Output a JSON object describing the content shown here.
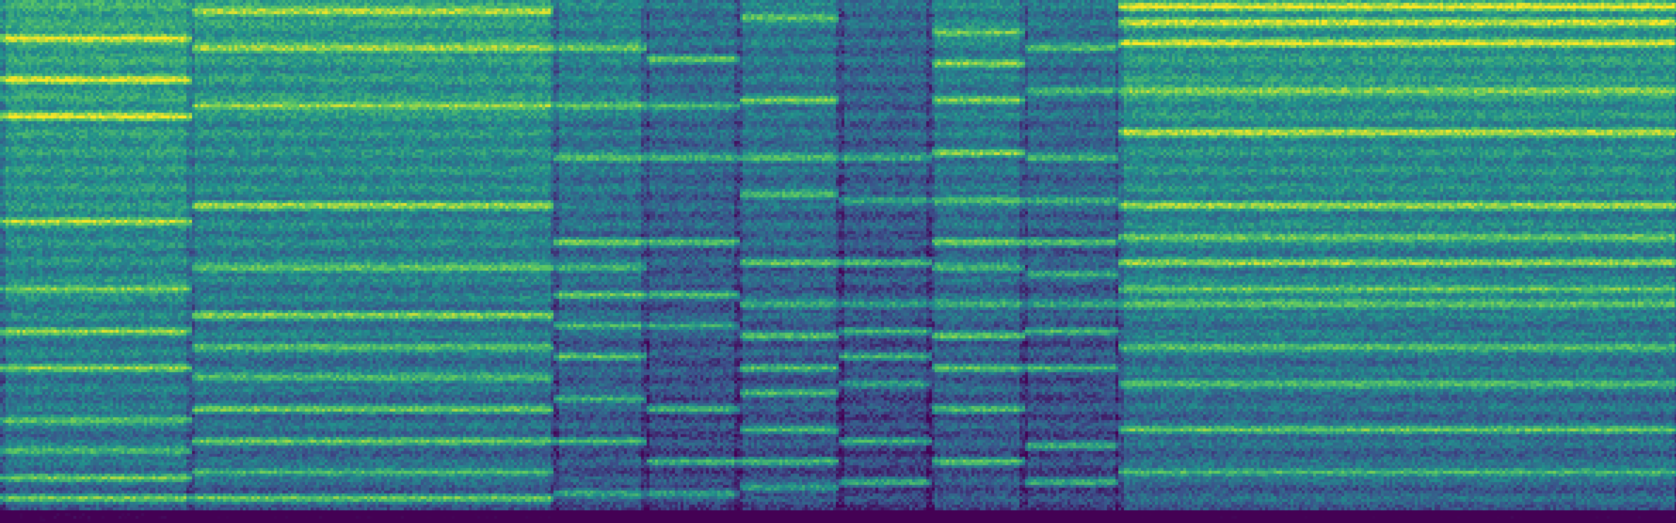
{
  "image": {
    "kind": "spectrogram",
    "colormap": "viridis",
    "colors": {
      "low": "#440154",
      "mid_low": "#3b528b",
      "mid": "#21918c",
      "mid_high": "#5ec962",
      "high": "#fde725"
    },
    "time_segments": [
      {
        "start": 0.0,
        "end": 0.113,
        "level": 0.6,
        "bands": [
          0.07,
          0.15,
          0.22,
          0.42,
          0.55,
          0.63,
          0.7,
          0.8,
          0.86,
          0.91,
          0.95
        ]
      },
      {
        "start": 0.113,
        "end": 0.33,
        "level": 0.55,
        "bands": [
          0.02,
          0.09,
          0.2,
          0.39,
          0.51,
          0.6,
          0.66,
          0.72,
          0.78,
          0.84,
          0.9,
          0.95
        ]
      },
      {
        "start": 0.33,
        "end": 0.385,
        "level": 0.45,
        "bands": [
          0.09,
          0.2,
          0.3,
          0.46,
          0.51,
          0.56,
          0.62,
          0.68,
          0.76,
          0.84,
          0.94
        ]
      },
      {
        "start": 0.385,
        "end": 0.44,
        "level": 0.38,
        "bands": [
          0.11,
          0.2,
          0.3,
          0.46,
          0.56,
          0.62,
          0.78,
          0.88,
          0.94
        ]
      },
      {
        "start": 0.44,
        "end": 0.5,
        "level": 0.42,
        "bands": [
          0.03,
          0.19,
          0.3,
          0.37,
          0.5,
          0.58,
          0.64,
          0.7,
          0.75,
          0.82,
          0.88,
          0.93
        ]
      },
      {
        "start": 0.5,
        "end": 0.555,
        "level": 0.35,
        "bands": [
          0.3,
          0.38,
          0.5,
          0.58,
          0.63,
          0.68,
          0.73,
          0.84,
          0.92
        ]
      },
      {
        "start": 0.555,
        "end": 0.61,
        "level": 0.45,
        "bands": [
          0.06,
          0.12,
          0.19,
          0.29,
          0.38,
          0.46,
          0.51,
          0.58,
          0.64,
          0.7,
          0.78,
          0.88
        ]
      },
      {
        "start": 0.61,
        "end": 0.667,
        "level": 0.38,
        "bands": [
          0.09,
          0.17,
          0.3,
          0.38,
          0.46,
          0.52,
          0.58,
          0.63,
          0.7,
          0.85,
          0.92
        ]
      },
      {
        "start": 0.667,
        "end": 1.0,
        "level": 0.55,
        "bands": [
          0.01,
          0.04,
          0.08,
          0.17,
          0.25,
          0.39,
          0.45,
          0.5,
          0.55,
          0.58,
          0.66,
          0.73,
          0.82,
          0.9
        ]
      }
    ]
  }
}
